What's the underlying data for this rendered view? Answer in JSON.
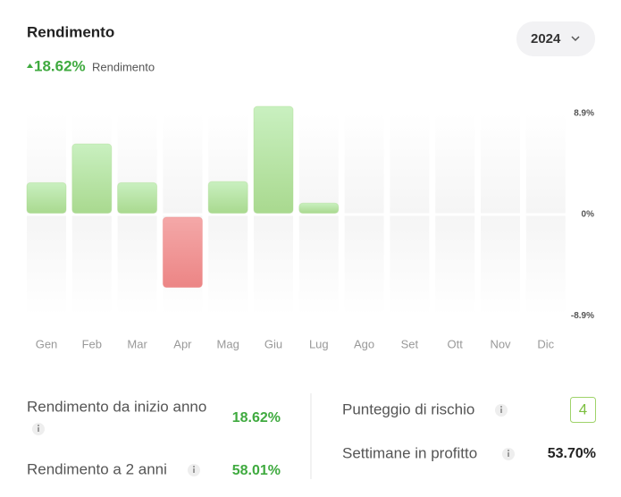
{
  "header": {
    "title": "Rendimento",
    "year": "2024",
    "change": "18.62%",
    "change_label": "Rendimento"
  },
  "chart_data": {
    "type": "bar",
    "categories": [
      "Gen",
      "Feb",
      "Mar",
      "Apr",
      "Mag",
      "Giu",
      "Lug",
      "Ago",
      "Set",
      "Ott",
      "Nov",
      "Dic"
    ],
    "values": [
      2.8,
      6.2,
      2.8,
      -6.4,
      2.9,
      9.5,
      1.0,
      null,
      null,
      null,
      null,
      null
    ],
    "positive_color": "#a9d98f",
    "negative_color": "#ee8888",
    "ylim": [
      -9.5,
      9.5
    ],
    "yticks": [
      {
        "value": 8.9,
        "label": "8.9%"
      },
      {
        "value": 0,
        "label": "0%"
      },
      {
        "value": -8.9,
        "label": "-8.9%"
      }
    ]
  },
  "stats": {
    "left": [
      {
        "label": "Rendimento da inizio anno",
        "value": "18.62%"
      },
      {
        "label": "Rendimento a 2 anni",
        "value": "58.01%"
      }
    ],
    "right": [
      {
        "label": "Punteggio di rischio",
        "value": "4"
      },
      {
        "label": "Settimane in profitto",
        "value": "53.70%"
      }
    ]
  }
}
